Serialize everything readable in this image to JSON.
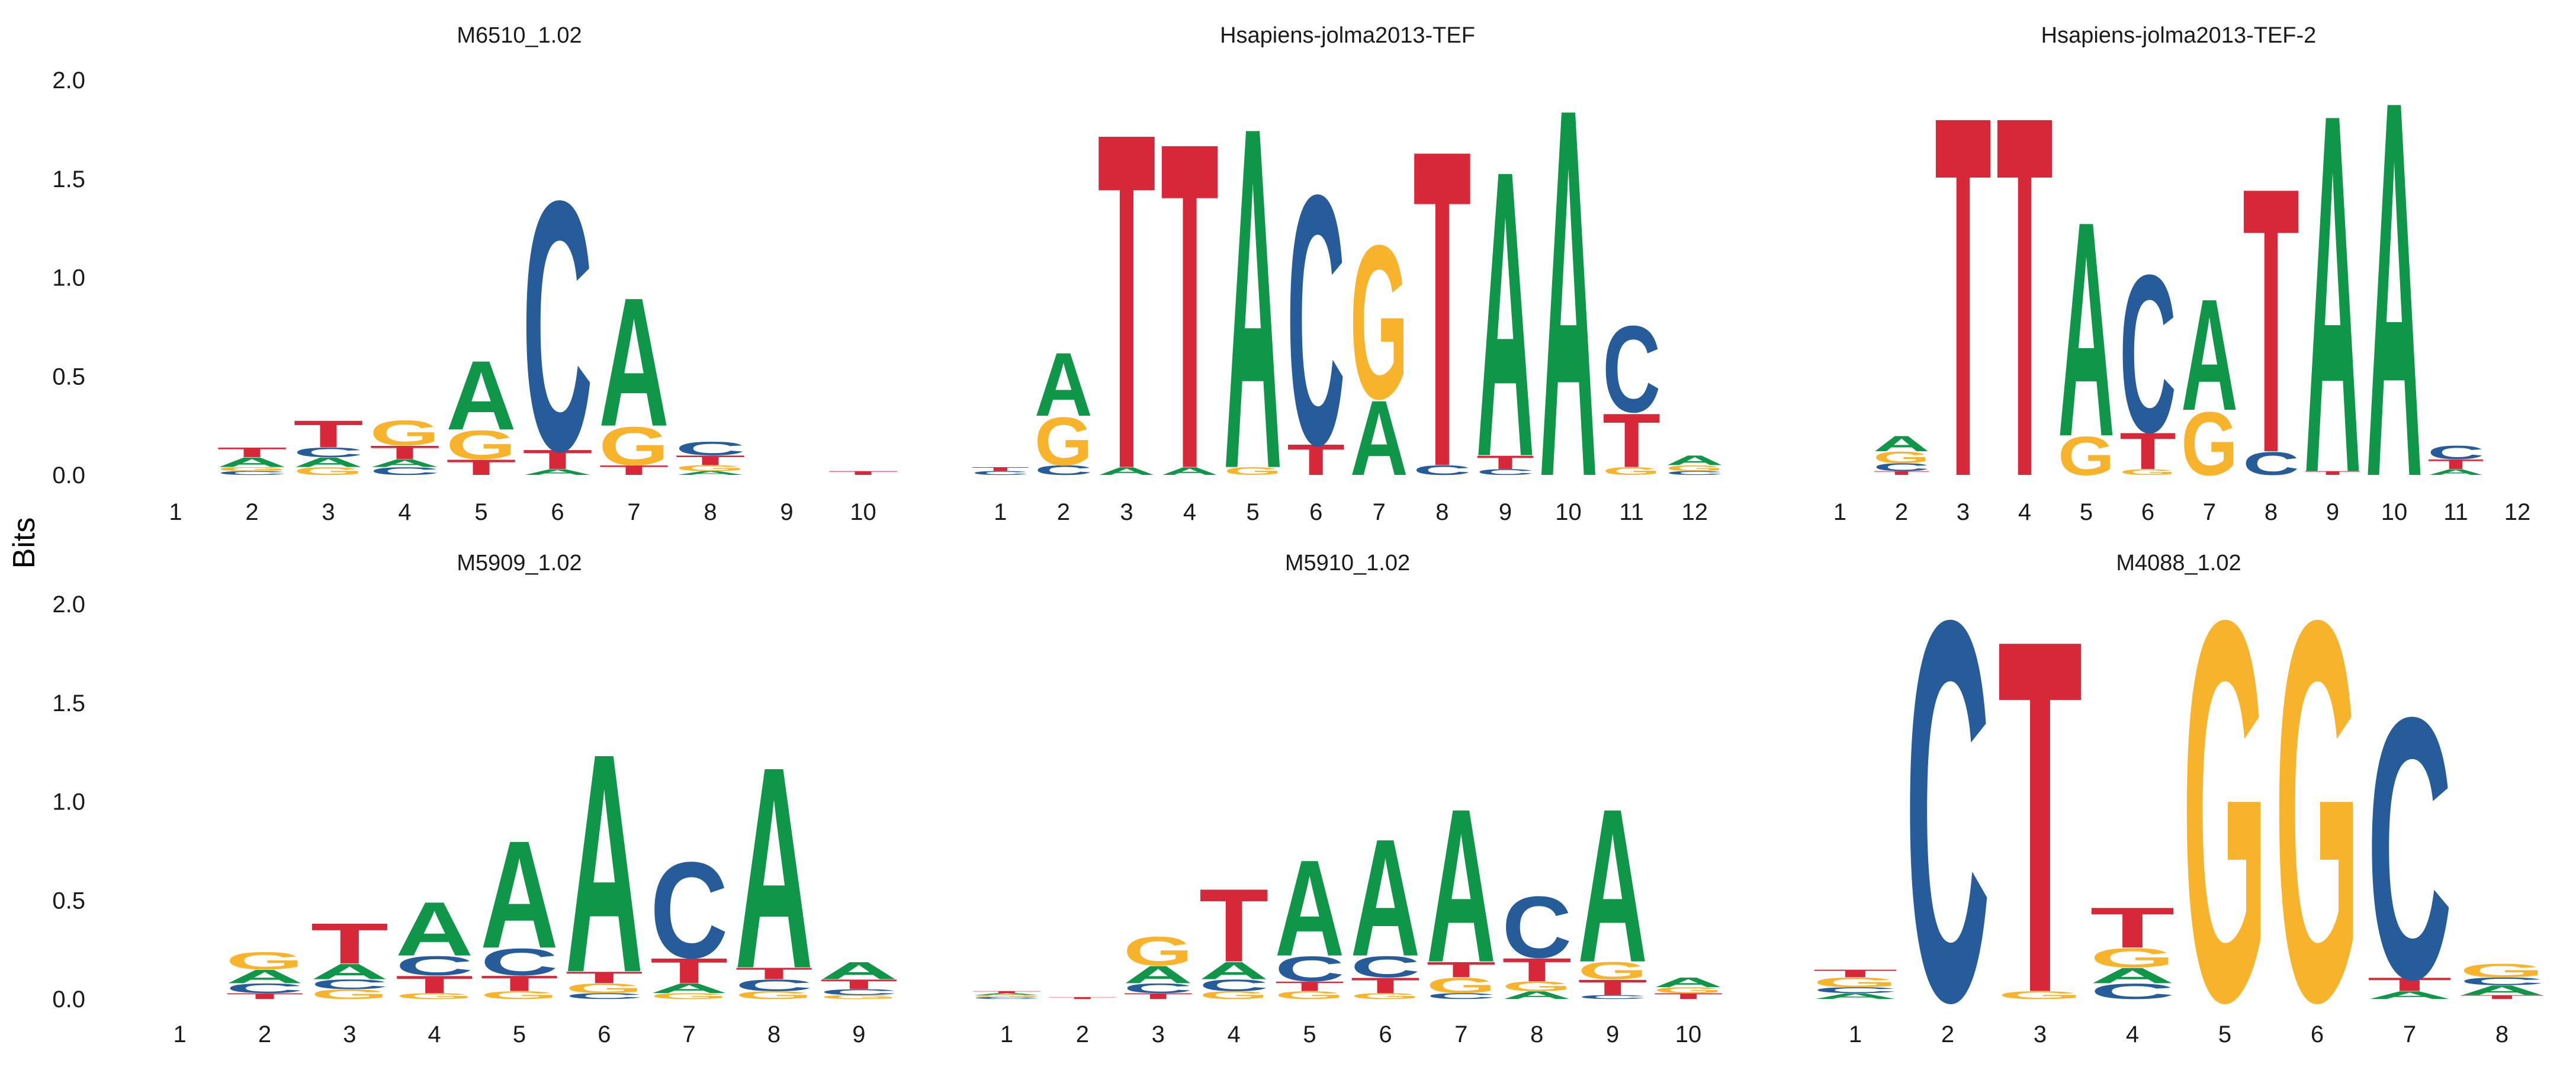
{
  "colors": {
    "A": "#109648",
    "C": "#255C99",
    "G": "#F7B32B",
    "T": "#D62839"
  },
  "ylabel": "Bits",
  "chart_data": [
    {
      "type": "sequence-logo",
      "title": "M6510_1.02",
      "ylim": [
        0,
        2.0
      ],
      "yticks": [
        "0.0",
        "0.5",
        "1.0",
        "1.5",
        "2.0"
      ],
      "positions": [
        {
          "label": "1",
          "letters": []
        },
        {
          "label": "2",
          "letters": [
            {
              "b": "C",
              "h": 0.02
            },
            {
              "b": "G",
              "h": 0.02
            },
            {
              "b": "A",
              "h": 0.05
            },
            {
              "b": "T",
              "h": 0.05
            }
          ]
        },
        {
          "label": "3",
          "letters": [
            {
              "b": "G",
              "h": 0.04
            },
            {
              "b": "A",
              "h": 0.05
            },
            {
              "b": "C",
              "h": 0.05
            },
            {
              "b": "T",
              "h": 0.14
            }
          ]
        },
        {
          "label": "4",
          "letters": [
            {
              "b": "C",
              "h": 0.04
            },
            {
              "b": "A",
              "h": 0.04
            },
            {
              "b": "T",
              "h": 0.07
            },
            {
              "b": "G",
              "h": 0.13
            }
          ]
        },
        {
          "label": "5",
          "letters": [
            {
              "b": "T",
              "h": 0.08
            },
            {
              "b": "G",
              "h": 0.15
            },
            {
              "b": "A",
              "h": 0.36
            }
          ]
        },
        {
          "label": "6",
          "letters": [
            {
              "b": "A",
              "h": 0.03
            },
            {
              "b": "T",
              "h": 0.1
            },
            {
              "b": "C",
              "h": 1.3
            }
          ]
        },
        {
          "label": "7",
          "letters": [
            {
              "b": "T",
              "h": 0.05
            },
            {
              "b": "G",
              "h": 0.2
            },
            {
              "b": "A",
              "h": 0.67
            }
          ]
        },
        {
          "label": "8",
          "letters": [
            {
              "b": "A",
              "h": 0.02
            },
            {
              "b": "G",
              "h": 0.03
            },
            {
              "b": "T",
              "h": 0.05
            },
            {
              "b": "C",
              "h": 0.07
            }
          ]
        },
        {
          "label": "9",
          "letters": []
        },
        {
          "label": "10",
          "letters": [
            {
              "b": "T",
              "h": 0.02
            }
          ]
        }
      ]
    },
    {
      "type": "sequence-logo",
      "title": "Hsapiens-jolma2013-TEF",
      "ylim": [
        0,
        2.0
      ],
      "yticks": [],
      "positions": [
        {
          "label": "1",
          "letters": [
            {
              "b": "C",
              "h": 0.02
            },
            {
              "b": "T",
              "h": 0.02
            }
          ]
        },
        {
          "label": "2",
          "letters": [
            {
              "b": "C",
              "h": 0.05
            },
            {
              "b": "G",
              "h": 0.25
            },
            {
              "b": "A",
              "h": 0.33
            }
          ]
        },
        {
          "label": "3",
          "letters": [
            {
              "b": "A",
              "h": 0.04
            },
            {
              "b": "T",
              "h": 1.75
            }
          ]
        },
        {
          "label": "4",
          "letters": [
            {
              "b": "A",
              "h": 0.04
            },
            {
              "b": "T",
              "h": 1.7
            }
          ]
        },
        {
          "label": "5",
          "letters": [
            {
              "b": "G",
              "h": 0.04
            },
            {
              "b": "A",
              "h": 1.78
            }
          ]
        },
        {
          "label": "6",
          "letters": [
            {
              "b": "T",
              "h": 0.16
            },
            {
              "b": "C",
              "h": 1.3
            }
          ]
        },
        {
          "label": "7",
          "letters": [
            {
              "b": "A",
              "h": 0.39
            },
            {
              "b": "G",
              "h": 0.8
            }
          ]
        },
        {
          "label": "8",
          "letters": [
            {
              "b": "C",
              "h": 0.05
            },
            {
              "b": "T",
              "h": 1.65
            }
          ]
        },
        {
          "label": "9",
          "letters": [
            {
              "b": "C",
              "h": 0.03
            },
            {
              "b": "T",
              "h": 0.07
            },
            {
              "b": "A",
              "h": 1.49
            }
          ]
        },
        {
          "label": "10",
          "letters": [
            {
              "b": "A",
              "h": 1.92
            }
          ]
        },
        {
          "label": "11",
          "letters": [
            {
              "b": "G",
              "h": 0.04
            },
            {
              "b": "T",
              "h": 0.28
            },
            {
              "b": "C",
              "h": 0.45
            }
          ]
        },
        {
          "label": "12",
          "letters": [
            {
              "b": "C",
              "h": 0.02
            },
            {
              "b": "G",
              "h": 0.03
            },
            {
              "b": "A",
              "h": 0.05
            }
          ]
        }
      ]
    },
    {
      "type": "sequence-logo",
      "title": "Hsapiens-jolma2013-TEF-2",
      "ylim": [
        0,
        2.0
      ],
      "yticks": [],
      "positions": [
        {
          "label": "1",
          "letters": []
        },
        {
          "label": "2",
          "letters": [
            {
              "b": "T",
              "h": 0.02
            },
            {
              "b": "C",
              "h": 0.04
            },
            {
              "b": "G",
              "h": 0.06
            },
            {
              "b": "A",
              "h": 0.08
            }
          ]
        },
        {
          "label": "3",
          "letters": [
            {
              "b": "T",
              "h": 1.88
            }
          ]
        },
        {
          "label": "4",
          "letters": [
            {
              "b": "T",
              "h": 1.88
            }
          ]
        },
        {
          "label": "5",
          "letters": [
            {
              "b": "G",
              "h": 0.2
            },
            {
              "b": "A",
              "h": 1.12
            }
          ]
        },
        {
          "label": "6",
          "letters": [
            {
              "b": "G",
              "h": 0.03
            },
            {
              "b": "T",
              "h": 0.19
            },
            {
              "b": "C",
              "h": 0.82
            }
          ]
        },
        {
          "label": "7",
          "letters": [
            {
              "b": "G",
              "h": 0.33
            },
            {
              "b": "A",
              "h": 0.58
            }
          ]
        },
        {
          "label": "8",
          "letters": [
            {
              "b": "C",
              "h": 0.12
            },
            {
              "b": "T",
              "h": 1.38
            }
          ]
        },
        {
          "label": "9",
          "letters": [
            {
              "b": "T",
              "h": 0.02
            },
            {
              "b": "A",
              "h": 1.87
            }
          ]
        },
        {
          "label": "10",
          "letters": [
            {
              "b": "A",
              "h": 1.96
            }
          ]
        },
        {
          "label": "11",
          "letters": [
            {
              "b": "A",
              "h": 0.03
            },
            {
              "b": "T",
              "h": 0.05
            },
            {
              "b": "C",
              "h": 0.07
            }
          ]
        },
        {
          "label": "12",
          "letters": []
        }
      ]
    },
    {
      "type": "sequence-logo",
      "title": "M5909_1.02",
      "ylim": [
        0,
        2.0
      ],
      "yticks": [
        "0.0",
        "0.5",
        "1.0",
        "1.5",
        "2.0"
      ],
      "positions": [
        {
          "label": "1",
          "letters": []
        },
        {
          "label": "2",
          "letters": [
            {
              "b": "T",
              "h": 0.03
            },
            {
              "b": "C",
              "h": 0.05
            },
            {
              "b": "A",
              "h": 0.07
            },
            {
              "b": "G",
              "h": 0.09
            }
          ]
        },
        {
          "label": "3",
          "letters": [
            {
              "b": "G",
              "h": 0.05
            },
            {
              "b": "C",
              "h": 0.05
            },
            {
              "b": "A",
              "h": 0.08
            },
            {
              "b": "T",
              "h": 0.21
            }
          ]
        },
        {
          "label": "4",
          "letters": [
            {
              "b": "G",
              "h": 0.03
            },
            {
              "b": "T",
              "h": 0.09
            },
            {
              "b": "C",
              "h": 0.1
            },
            {
              "b": "A",
              "h": 0.28
            }
          ]
        },
        {
          "label": "5",
          "letters": [
            {
              "b": "G",
              "h": 0.04
            },
            {
              "b": "T",
              "h": 0.08
            },
            {
              "b": "C",
              "h": 0.14
            },
            {
              "b": "A",
              "h": 0.56
            }
          ]
        },
        {
          "label": "6",
          "letters": [
            {
              "b": "C",
              "h": 0.03
            },
            {
              "b": "G",
              "h": 0.05
            },
            {
              "b": "T",
              "h": 0.06
            },
            {
              "b": "A",
              "h": 1.14
            }
          ]
        },
        {
          "label": "7",
          "letters": [
            {
              "b": "G",
              "h": 0.03
            },
            {
              "b": "A",
              "h": 0.05
            },
            {
              "b": "T",
              "h": 0.13
            },
            {
              "b": "C",
              "h": 0.5
            }
          ]
        },
        {
          "label": "8",
          "letters": [
            {
              "b": "G",
              "h": 0.04
            },
            {
              "b": "C",
              "h": 0.06
            },
            {
              "b": "T",
              "h": 0.06
            },
            {
              "b": "A",
              "h": 1.05
            }
          ]
        },
        {
          "label": "9",
          "letters": [
            {
              "b": "G",
              "h": 0.02
            },
            {
              "b": "C",
              "h": 0.03
            },
            {
              "b": "T",
              "h": 0.05
            },
            {
              "b": "A",
              "h": 0.09
            }
          ]
        }
      ]
    },
    {
      "type": "sequence-logo",
      "title": "M5910_1.02",
      "ylim": [
        0,
        2.0
      ],
      "yticks": [],
      "positions": [
        {
          "label": "1",
          "letters": [
            {
              "b": "C",
              "h": 0.01
            },
            {
              "b": "G",
              "h": 0.01
            },
            {
              "b": "A",
              "h": 0.01
            },
            {
              "b": "T",
              "h": 0.01
            }
          ]
        },
        {
          "label": "2",
          "letters": [
            {
              "b": "T",
              "h": 0.01
            }
          ]
        },
        {
          "label": "3",
          "letters": [
            {
              "b": "T",
              "h": 0.03
            },
            {
              "b": "C",
              "h": 0.05
            },
            {
              "b": "A",
              "h": 0.09
            },
            {
              "b": "G",
              "h": 0.15
            }
          ]
        },
        {
          "label": "4",
          "letters": [
            {
              "b": "G",
              "h": 0.04
            },
            {
              "b": "C",
              "h": 0.06
            },
            {
              "b": "A",
              "h": 0.09
            },
            {
              "b": "T",
              "h": 0.38
            }
          ]
        },
        {
          "label": "5",
          "letters": [
            {
              "b": "G",
              "h": 0.04
            },
            {
              "b": "T",
              "h": 0.05
            },
            {
              "b": "C",
              "h": 0.13
            },
            {
              "b": "A",
              "h": 0.5
            }
          ]
        },
        {
          "label": "6",
          "letters": [
            {
              "b": "G",
              "h": 0.03
            },
            {
              "b": "T",
              "h": 0.08
            },
            {
              "b": "C",
              "h": 0.11
            },
            {
              "b": "A",
              "h": 0.61
            }
          ]
        },
        {
          "label": "7",
          "letters": [
            {
              "b": "C",
              "h": 0.03
            },
            {
              "b": "G",
              "h": 0.08
            },
            {
              "b": "T",
              "h": 0.08
            },
            {
              "b": "A",
              "h": 0.8
            }
          ]
        },
        {
          "label": "8",
          "letters": [
            {
              "b": "A",
              "h": 0.04
            },
            {
              "b": "G",
              "h": 0.05
            },
            {
              "b": "T",
              "h": 0.12
            },
            {
              "b": "C",
              "h": 0.32
            }
          ]
        },
        {
          "label": "9",
          "letters": [
            {
              "b": "C",
              "h": 0.02
            },
            {
              "b": "T",
              "h": 0.08
            },
            {
              "b": "G",
              "h": 0.09
            },
            {
              "b": "A",
              "h": 0.8
            }
          ]
        },
        {
          "label": "10",
          "letters": [
            {
              "b": "T",
              "h": 0.03
            },
            {
              "b": "G",
              "h": 0.03
            },
            {
              "b": "A",
              "h": 0.05
            }
          ]
        }
      ]
    },
    {
      "type": "sequence-logo",
      "title": "M4088_1.02",
      "ylim": [
        0,
        2.0
      ],
      "yticks": [],
      "positions": [
        {
          "label": "1",
          "letters": [
            {
              "b": "A",
              "h": 0.03
            },
            {
              "b": "C",
              "h": 0.03
            },
            {
              "b": "G",
              "h": 0.05
            },
            {
              "b": "T",
              "h": 0.04
            }
          ]
        },
        {
          "label": "2",
          "letters": [
            {
              "b": "C",
              "h": 1.98
            }
          ]
        },
        {
          "label": "3",
          "letters": [
            {
              "b": "G",
              "h": 0.04
            },
            {
              "b": "T",
              "h": 1.84
            }
          ]
        },
        {
          "label": "4",
          "letters": [
            {
              "b": "C",
              "h": 0.08
            },
            {
              "b": "A",
              "h": 0.08
            },
            {
              "b": "G",
              "h": 0.1
            },
            {
              "b": "T",
              "h": 0.21
            }
          ]
        },
        {
          "label": "5",
          "letters": [
            {
              "b": "G",
              "h": 1.98
            }
          ]
        },
        {
          "label": "6",
          "letters": [
            {
              "b": "G",
              "h": 1.98
            }
          ]
        },
        {
          "label": "7",
          "letters": [
            {
              "b": "A",
              "h": 0.04
            },
            {
              "b": "T",
              "h": 0.07
            },
            {
              "b": "C",
              "h": 1.36
            }
          ]
        },
        {
          "label": "8",
          "letters": [
            {
              "b": "T",
              "h": 0.02
            },
            {
              "b": "A",
              "h": 0.05
            },
            {
              "b": "C",
              "h": 0.04
            },
            {
              "b": "G",
              "h": 0.07
            }
          ]
        }
      ]
    }
  ]
}
